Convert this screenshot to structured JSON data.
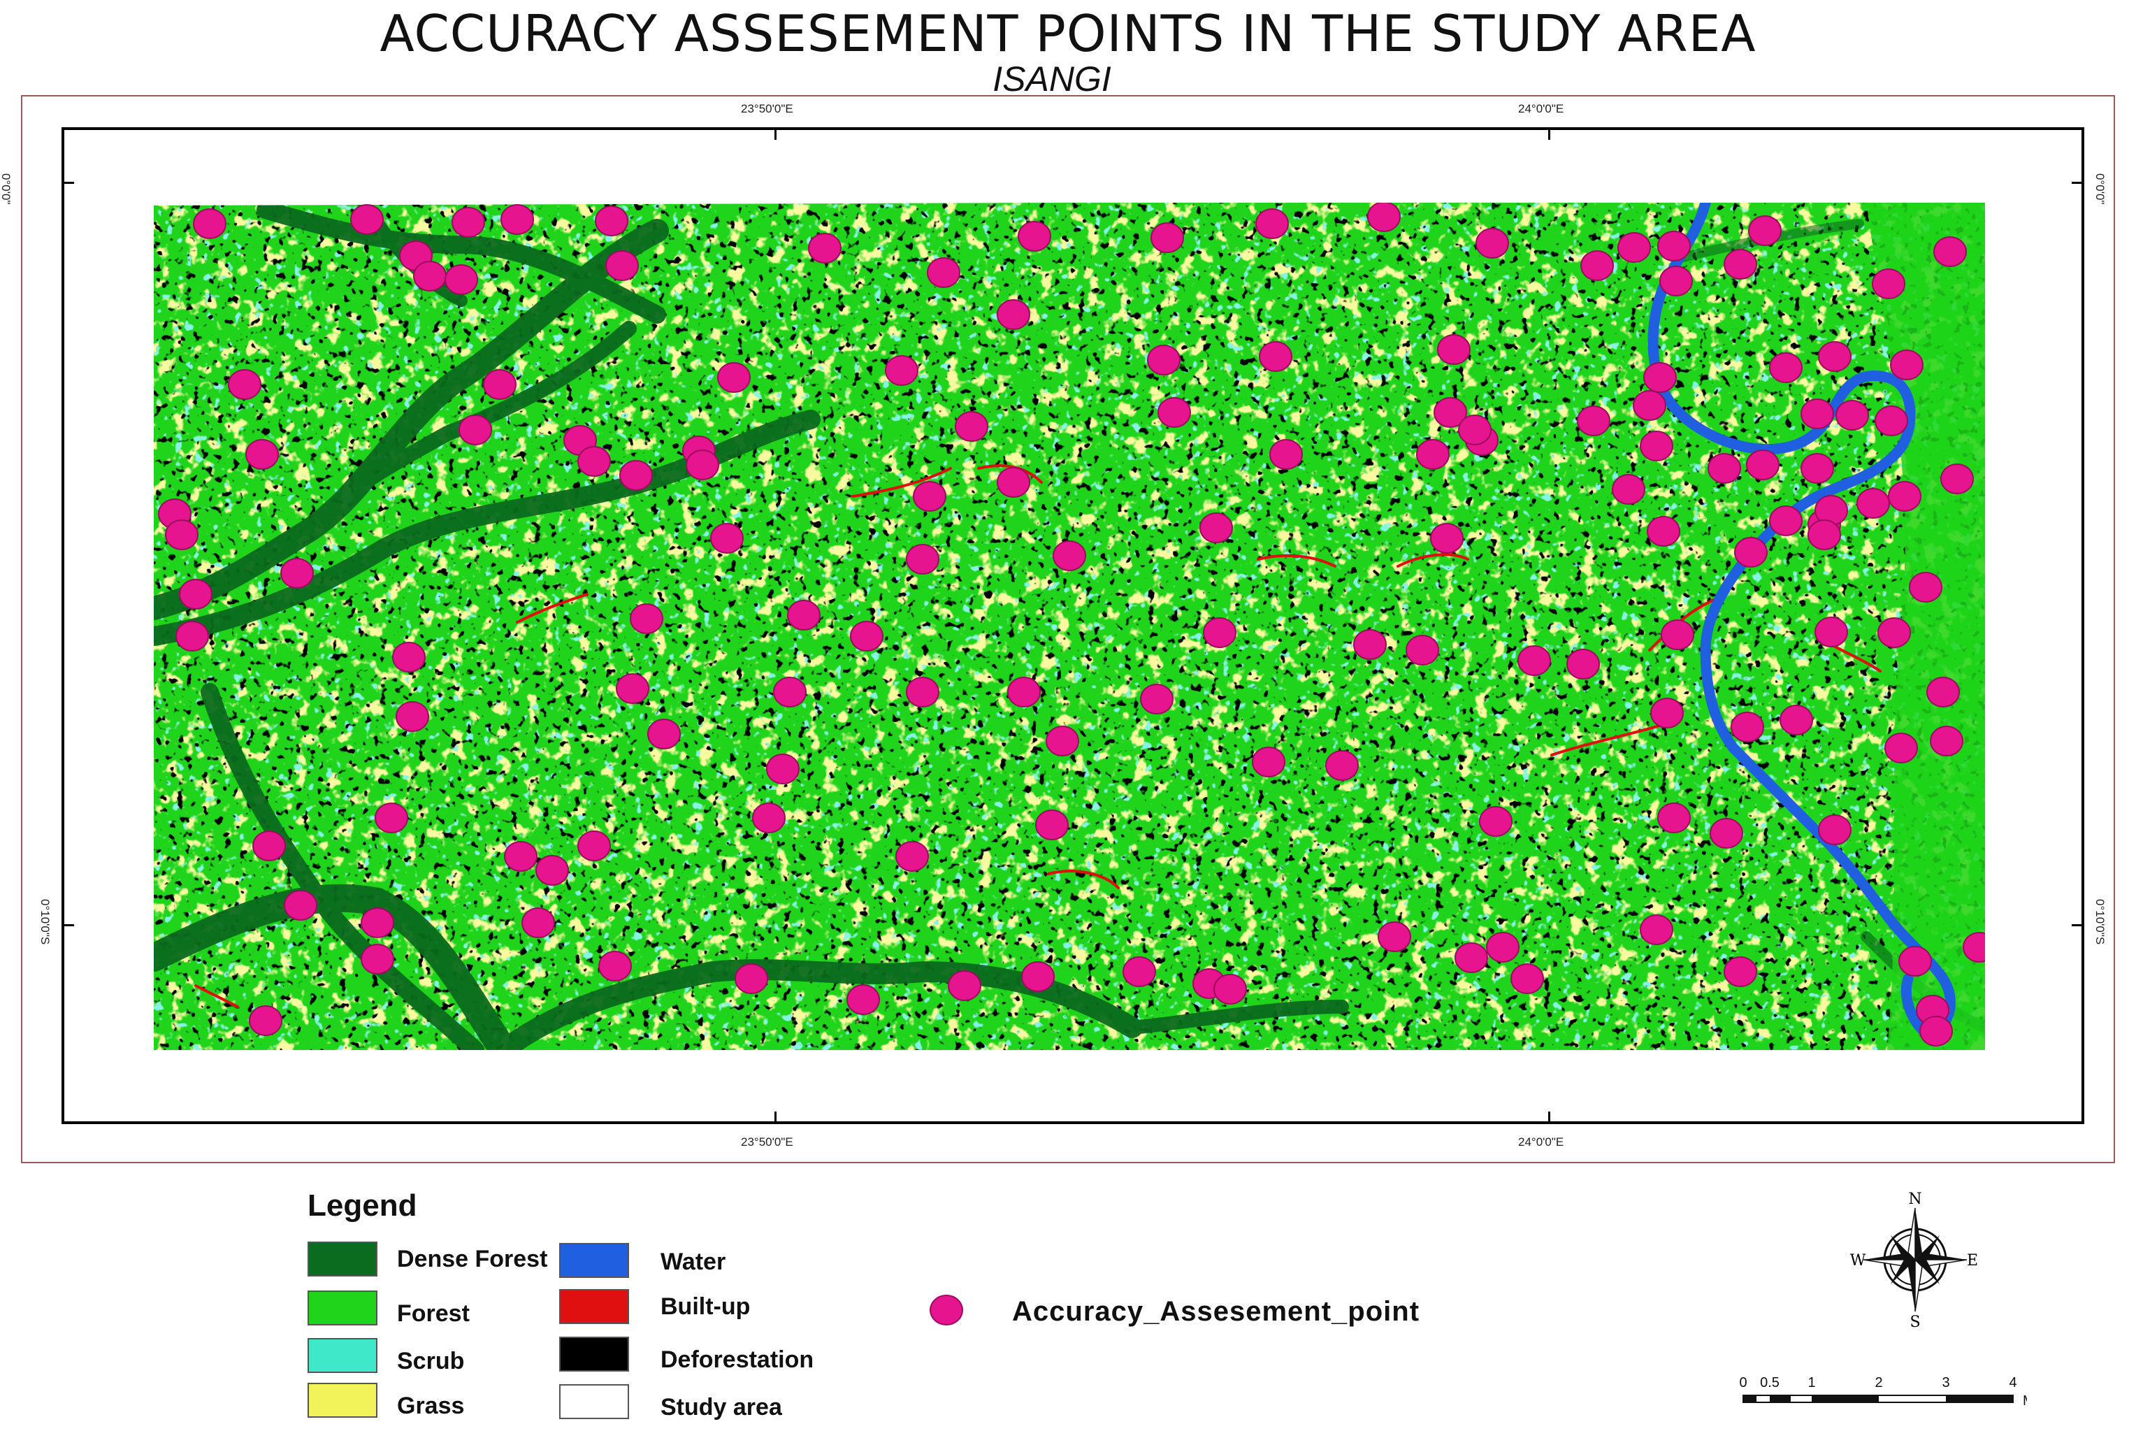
{
  "map": {
    "title": "ACCURACY ASSESEMENT POINTS IN THE STUDY AREA",
    "subtitle": "ISANGI",
    "graticule": {
      "top_left": "23°50'0\"E",
      "top_right": "24°0'0\"E",
      "bottom_left": "23°50'0\"E",
      "bottom_right": "24°0'0\"E",
      "left_top": "0°0'0\"",
      "left_bottom": "0°10'0\"S",
      "right_top": "0°0'0\"",
      "right_bottom": "0°10'0\"S"
    },
    "colors": {
      "dense_forest": "#0b6b1e",
      "forest": "#1fd41a",
      "scrub": "#3ee8c8",
      "grass": "#f2f25a",
      "water": "#1f5fe0",
      "built_up": "#e01010",
      "deforestation": "#000000",
      "study_area": "#ffffff",
      "point": "#e6158f"
    }
  },
  "legend": {
    "title": "Legend",
    "items": [
      {
        "label": "Dense Forest",
        "color": "#0b6b1e"
      },
      {
        "label": "Forest",
        "color": "#1fd41a"
      },
      {
        "label": "Scrub",
        "color": "#3ee8c8"
      },
      {
        "label": "Grass",
        "color": "#f2f25a"
      },
      {
        "label": "Water",
        "color": "#1f5fe0"
      },
      {
        "label": "Built-up",
        "color": "#e01010"
      },
      {
        "label": "Deforestation",
        "color": "#000000"
      },
      {
        "label": "Study area",
        "color": "#ffffff"
      }
    ],
    "point_label": "Accuracy_Assesement_point"
  },
  "compass": {
    "n": "N",
    "s": "S",
    "e": "E",
    "w": "W"
  },
  "scale": {
    "ticks": [
      "0",
      "0.5",
      "1",
      "2",
      "3",
      "4"
    ],
    "unit": "M"
  }
}
